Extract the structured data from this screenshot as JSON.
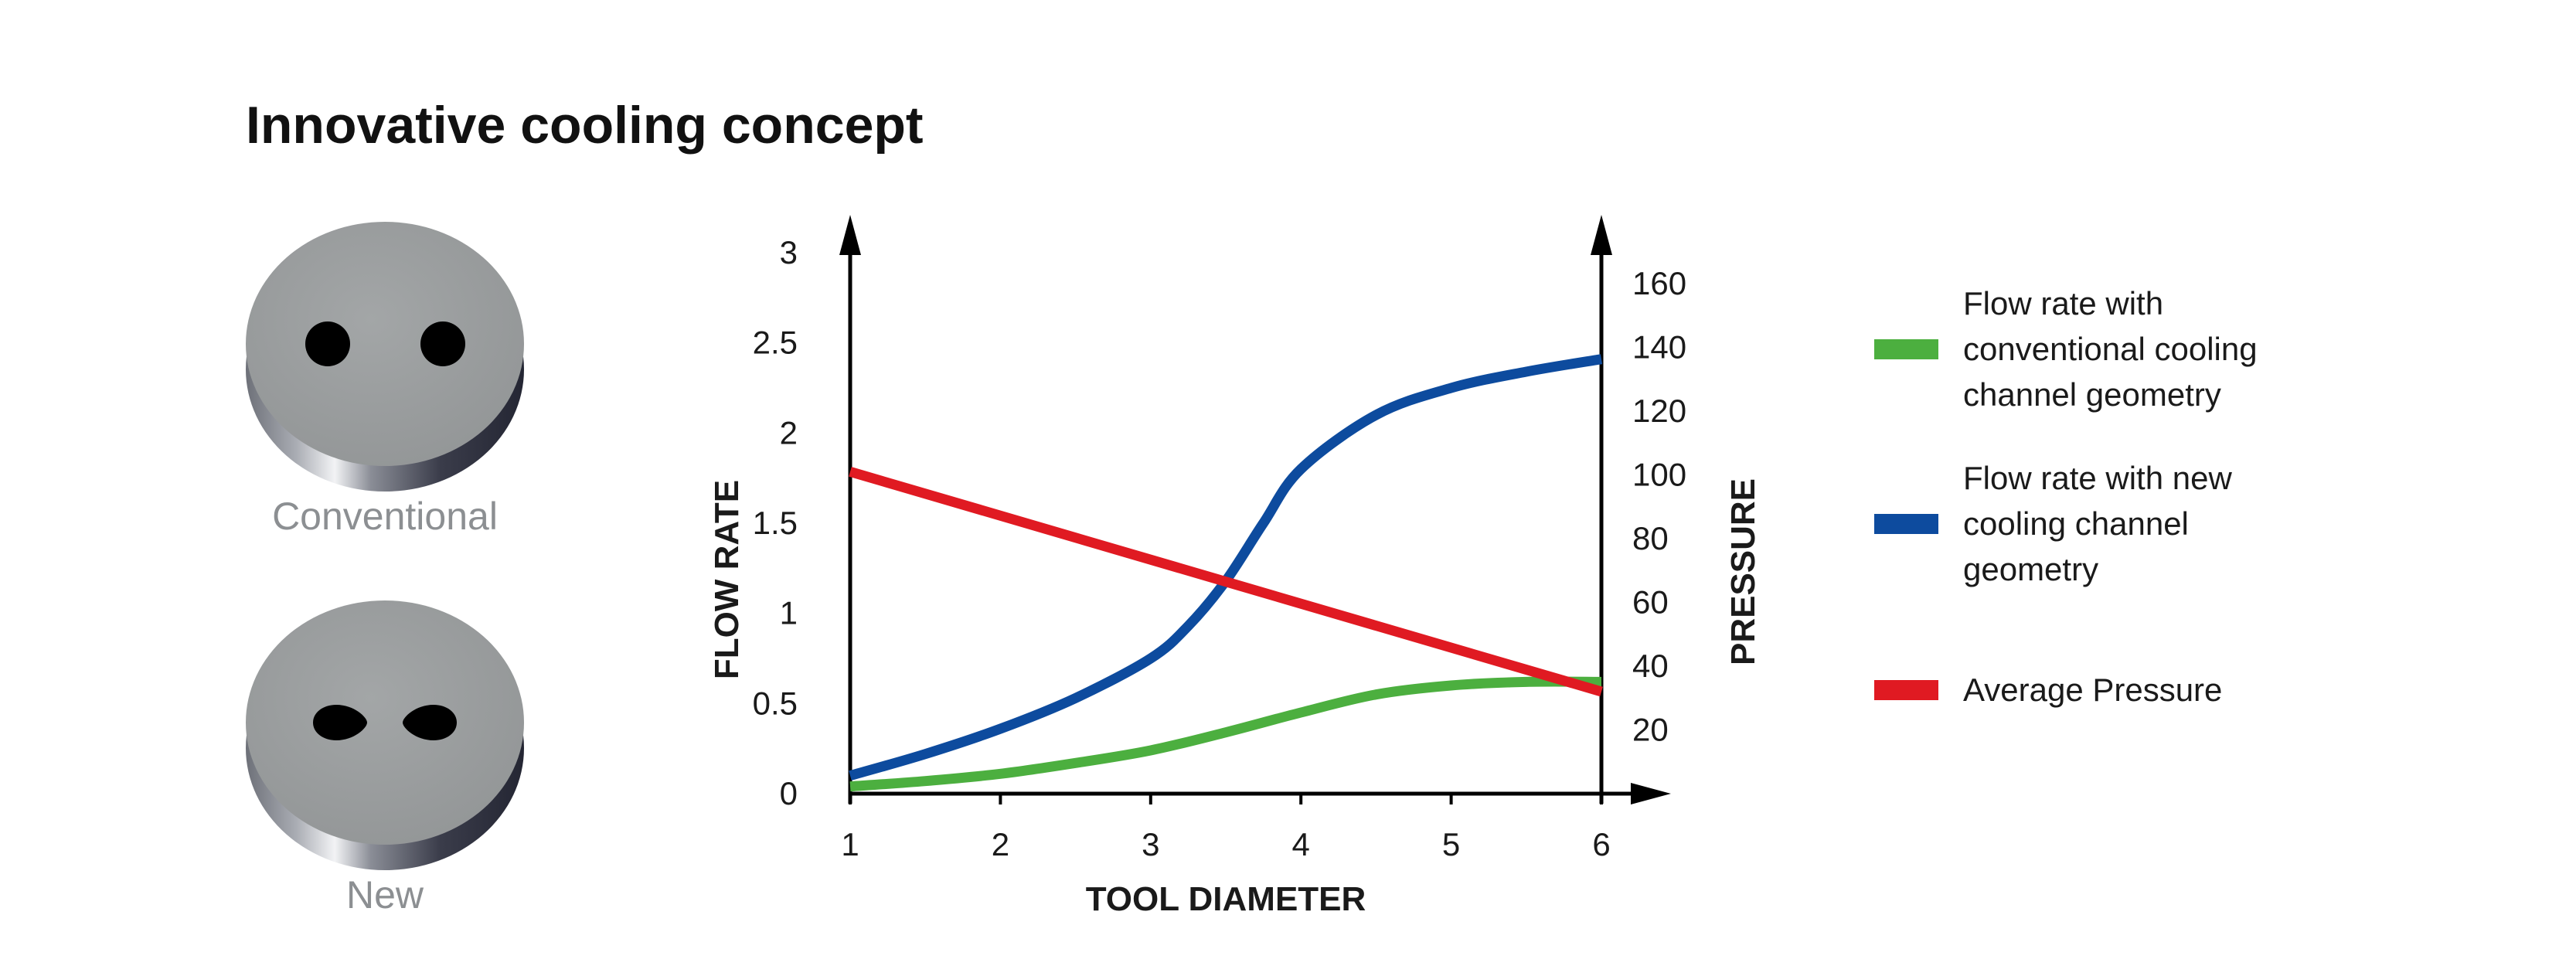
{
  "title": "Innovative cooling concept",
  "illustrations": [
    {
      "label": "Conventional",
      "hole_shape": "round"
    },
    {
      "label": "New",
      "hole_shape": "teardrop"
    }
  ],
  "colors": {
    "disc_face": "#9a9d9e",
    "disc_edge_dark": "#2f3140",
    "holes": "#000000",
    "caption": "#8c8f92",
    "green": "#4caf3f",
    "blue": "#0d4b9e",
    "red": "#e01a22"
  },
  "chart_data": {
    "type": "line",
    "xlabel": "TOOL DIAMETER",
    "ylabel": "FLOW RATE",
    "y2label": "PRESSURE",
    "x_ticks": [
      1,
      2,
      3,
      4,
      5,
      6
    ],
    "y_ticks": [
      "0",
      "0.5",
      "1",
      "1.5",
      "2",
      "2.5",
      "3"
    ],
    "y2_ticks": [
      "20",
      "40",
      "60",
      "80",
      "100",
      "120",
      "140",
      "160"
    ],
    "xlim": [
      1,
      6
    ],
    "ylim": [
      0,
      3
    ],
    "y2lim": [
      0,
      160
    ],
    "grid": false,
    "legend_position": "right",
    "series": [
      {
        "name": "Flow rate with conventional cooling channel geometry",
        "legend_lines": [
          "Flow rate with",
          "conventional cooling",
          "channel geometry"
        ],
        "axis": "left",
        "color_key": "green",
        "x": [
          1,
          1.5,
          2,
          2.5,
          3,
          3.5,
          4,
          4.5,
          5,
          5.5,
          6
        ],
        "y": [
          0.04,
          0.07,
          0.11,
          0.17,
          0.24,
          0.34,
          0.45,
          0.55,
          0.6,
          0.62,
          0.62
        ]
      },
      {
        "name": "Flow rate with new cooling channel geometry",
        "legend_lines": [
          "Flow rate with new",
          "cooling channel",
          "geometry"
        ],
        "axis": "left",
        "color_key": "blue",
        "x": [
          1,
          1.5,
          2,
          2.5,
          3,
          3.25,
          3.5,
          3.75,
          4,
          4.5,
          5,
          5.5,
          6
        ],
        "y": [
          0.1,
          0.22,
          0.36,
          0.53,
          0.75,
          0.93,
          1.18,
          1.5,
          1.8,
          2.1,
          2.25,
          2.34,
          2.41
        ]
      },
      {
        "name": "Average Pressure",
        "legend_lines": [
          "Average Pressure"
        ],
        "axis": "right",
        "color_key": "red",
        "x": [
          1,
          6
        ],
        "y": [
          101,
          32
        ]
      }
    ]
  }
}
